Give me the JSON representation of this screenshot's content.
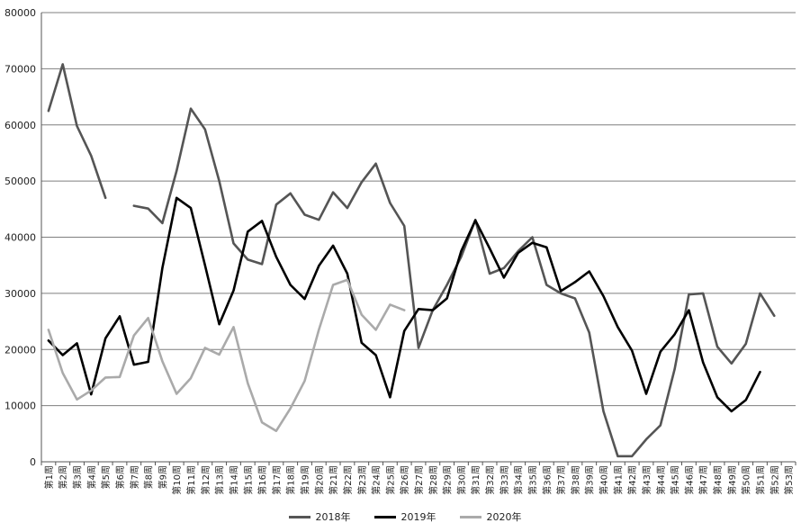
{
  "chart_data": {
    "type": "line",
    "title": "",
    "xlabel": "",
    "ylabel": "",
    "ylim": [
      0,
      80000
    ],
    "yticks": [
      "0",
      "10000",
      "20000",
      "30000",
      "40000",
      "50000",
      "60000",
      "70000",
      "80000"
    ],
    "grid": "horizontal",
    "legend_position": "bottom",
    "categories": [
      "第1周",
      "第2周",
      "第3周",
      "第4周",
      "第5周",
      "第6周",
      "第7周",
      "第8周",
      "第9周",
      "第10周",
      "第11周",
      "第12周",
      "第13周",
      "第14周",
      "第15周",
      "第16周",
      "第17周",
      "第18周",
      "第19周",
      "第20周",
      "第21周",
      "第22周",
      "第23周",
      "第24周",
      "第25周",
      "第26周",
      "第27周",
      "第28周",
      "第29周",
      "第30周",
      "第31周",
      "第32周",
      "第33周",
      "第34周",
      "第35周",
      "第36周",
      "第37周",
      "第38周",
      "第39周",
      "第40周",
      "第41周",
      "第42周",
      "第43周",
      "第44周",
      "第45周",
      "第46周",
      "第47周",
      "第48周",
      "第49周",
      "第50周",
      "第51周",
      "第52周",
      "第53周"
    ],
    "series": [
      {
        "name": "2018年",
        "color": "#555555",
        "values": [
          62500,
          70800,
          59800,
          54500,
          47000,
          null,
          45600,
          45100,
          42500,
          51800,
          62900,
          59200,
          50000,
          38900,
          36000,
          35200,
          45800,
          47800,
          44000,
          43100,
          48000,
          45200,
          49800,
          53100,
          46100,
          42000,
          20300,
          27000,
          31500,
          36500,
          43100,
          33500,
          34500,
          37500,
          40000,
          31500,
          30000,
          29100,
          23000,
          9000,
          1000,
          1000,
          4000,
          6500,
          16500,
          29800,
          30000,
          20500,
          17500,
          21000,
          30000,
          26000,
          null
        ]
      },
      {
        "name": "2019年",
        "color": "#000000",
        "values": [
          21600,
          19000,
          21100,
          12000,
          22000,
          25900,
          17300,
          17800,
          34500,
          47000,
          45200,
          35000,
          24500,
          30500,
          41000,
          42900,
          36500,
          31500,
          29000,
          34900,
          38500,
          33500,
          21200,
          19000,
          11500,
          23300,
          27200,
          27000,
          29100,
          37500,
          43000,
          38000,
          32800,
          37200,
          39000,
          38200,
          30400,
          32000,
          33900,
          29500,
          24000,
          19800,
          12100,
          19600,
          22700,
          27000,
          17700,
          11500,
          9000,
          11000,
          16000,
          null,
          null
        ]
      },
      {
        "name": "2020年",
        "color": "#aaaaaa",
        "values": [
          23500,
          15800,
          11100,
          12700,
          15000,
          15100,
          22500,
          25600,
          17900,
          12100,
          14900,
          20300,
          19100,
          24000,
          14000,
          7000,
          5500,
          9500,
          14400,
          23500,
          31500,
          32400,
          26200,
          23500,
          28000,
          27000,
          null,
          null,
          null,
          null,
          null,
          null,
          null,
          null,
          null,
          null,
          null,
          null,
          null,
          null,
          null,
          null,
          null,
          null,
          null,
          null,
          null,
          null,
          null,
          null,
          null,
          null,
          null
        ]
      }
    ]
  }
}
